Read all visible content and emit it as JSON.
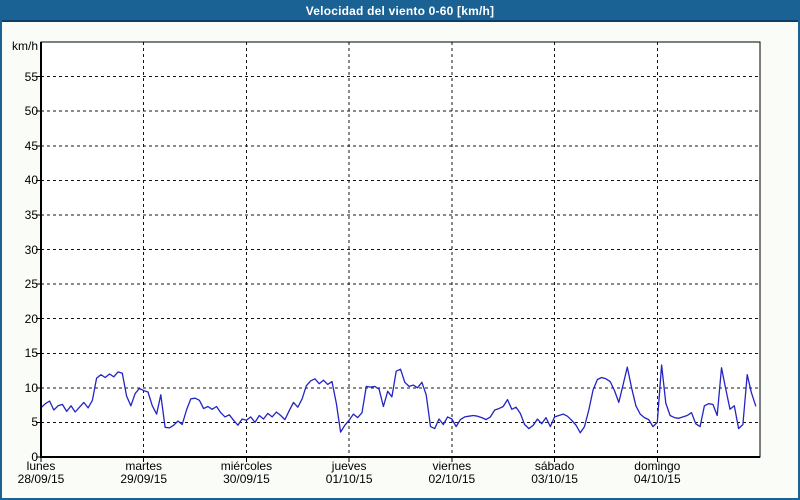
{
  "window": {
    "title": "Velocidad del viento 0-60 [km/h]"
  },
  "colors": {
    "frame": "#1a6293",
    "titlebar_bg": "#1a6293",
    "titlebar_border": "#0d3f66",
    "titlebar_text": "#ffffff",
    "page_bg": "#fafcf8",
    "plot_bg": "#fefffe",
    "grid": "#141414",
    "axis": "#000000",
    "line": "#2424c4",
    "label_text": "#000000"
  },
  "chart_data": {
    "type": "line",
    "title": "Velocidad del viento 0-60 [km/h]",
    "xlabel": "",
    "ylabel": "km/h",
    "ylim": [
      0,
      60
    ],
    "ytick_step": 5,
    "ytick_labels": [
      "0",
      "5",
      "10",
      "15",
      "20",
      "25",
      "30",
      "35",
      "40",
      "45",
      "50",
      "55"
    ],
    "grid": "dashed-black-on-white",
    "legend": "none",
    "x_days": [
      {
        "weekday": "lunes",
        "date": "28/09/15"
      },
      {
        "weekday": "martes",
        "date": "29/09/15"
      },
      {
        "weekday": "miércoles",
        "date": "30/09/15"
      },
      {
        "weekday": "jueves",
        "date": "01/10/15"
      },
      {
        "weekday": "viernes",
        "date": "02/10/15"
      },
      {
        "weekday": "sábado",
        "date": "03/10/15"
      },
      {
        "weekday": "domingo",
        "date": "04/10/15"
      }
    ],
    "series": [
      {
        "name": "Velocidad del viento",
        "unit": "km/h",
        "color": "#2424c4",
        "samples_per_day": 24,
        "values": [
          7.1,
          7.7,
          8.1,
          6.8,
          7.4,
          7.6,
          6.6,
          7.4,
          6.5,
          7.2,
          7.9,
          7.1,
          8.2,
          11.4,
          11.9,
          11.5,
          12.0,
          11.6,
          12.3,
          12.1,
          8.8,
          7.4,
          9.2,
          9.9,
          9.6,
          9.4,
          7.4,
          6.2,
          9.0,
          4.3,
          4.2,
          4.6,
          5.2,
          4.7,
          6.8,
          8.4,
          8.5,
          8.2,
          7.0,
          7.3,
          6.9,
          7.3,
          6.4,
          5.8,
          6.1,
          5.3,
          4.6,
          5.5,
          5.3,
          5.8,
          5.0,
          6.0,
          5.5,
          6.3,
          5.8,
          6.5,
          6.0,
          5.4,
          6.7,
          7.9,
          7.2,
          8.4,
          10.3,
          11.0,
          11.3,
          10.6,
          11.1,
          10.5,
          10.9,
          7.8,
          3.6,
          4.6,
          5.3,
          6.2,
          5.7,
          6.4,
          10.2,
          10.1,
          10.2,
          9.8,
          7.3,
          9.5,
          8.7,
          12.4,
          12.7,
          10.8,
          10.2,
          10.4,
          10.0,
          10.8,
          9.0,
          4.4,
          4.1,
          5.5,
          4.7,
          5.8,
          5.5,
          4.4,
          5.4,
          5.8,
          5.9,
          6.0,
          5.9,
          5.7,
          5.4,
          5.8,
          6.8,
          7.0,
          7.3,
          8.3,
          6.9,
          7.2,
          6.3,
          4.7,
          4.1,
          4.6,
          5.5,
          4.8,
          5.7,
          4.4,
          5.8,
          6.0,
          6.2,
          5.9,
          5.3,
          4.6,
          3.5,
          4.4,
          6.8,
          9.7,
          11.2,
          11.5,
          11.3,
          10.9,
          9.6,
          7.9,
          10.4,
          13.0,
          10.0,
          7.4,
          6.2,
          5.7,
          5.4,
          4.4,
          5.0,
          13.3,
          7.8,
          6.0,
          5.7,
          5.6,
          5.8,
          6.0,
          6.4,
          4.8,
          4.4,
          7.4,
          7.7,
          7.6,
          6.0,
          12.9,
          9.8,
          6.9,
          7.4,
          4.1,
          4.7,
          11.9,
          9.3,
          7.4
        ]
      }
    ]
  }
}
